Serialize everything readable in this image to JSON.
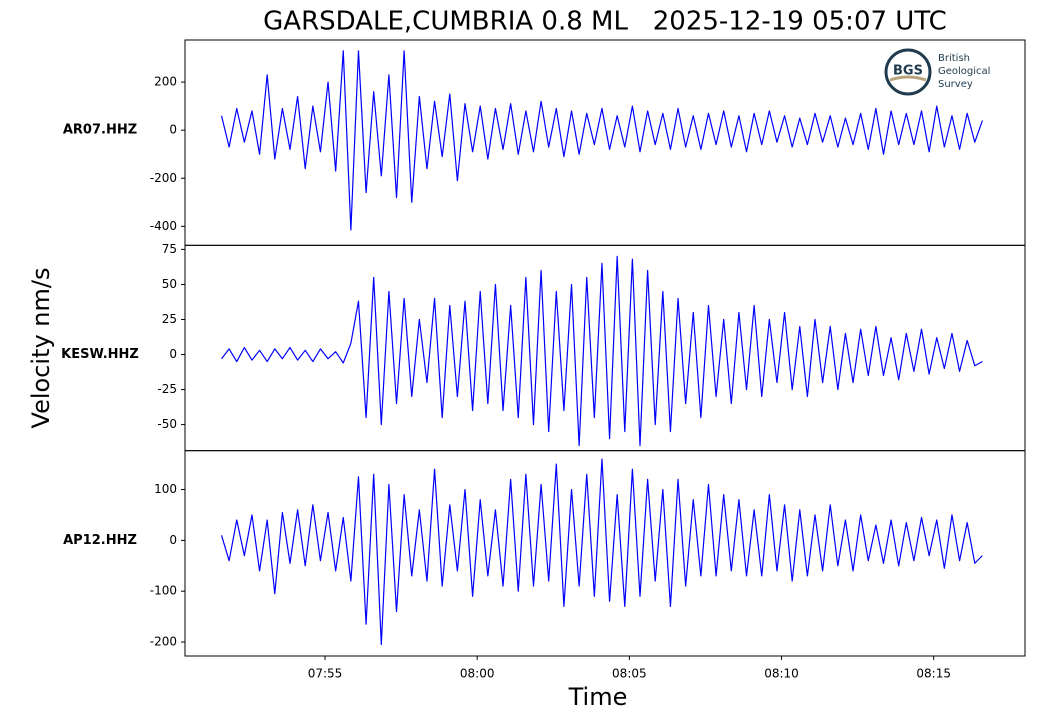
{
  "chart_data": {
    "type": "line",
    "title": "GARSDALE,CUMBRIA 0.8 ML   2025-12-19 05:07 UTC",
    "x_label": "Time",
    "y_label": "Velocity nm/s",
    "logo": {
      "mark": "BGS",
      "lines": [
        "British",
        "Geological",
        "Survey"
      ]
    },
    "xlim": [
      470.4,
      498.0
    ],
    "xticks": [
      {
        "value": 475,
        "label": "07:55"
      },
      {
        "value": 480,
        "label": "08:00"
      },
      {
        "value": 485,
        "label": "08:05"
      },
      {
        "value": 490,
        "label": "08:10"
      },
      {
        "value": 495,
        "label": "08:15"
      }
    ],
    "x": [
      471.6,
      471.85,
      472.1,
      472.35,
      472.6,
      472.85,
      473.1,
      473.35,
      473.6,
      473.85,
      474.1,
      474.35,
      474.6,
      474.85,
      475.1,
      475.35,
      475.6,
      475.85,
      476.1,
      476.35,
      476.6,
      476.85,
      477.1,
      477.35,
      477.6,
      477.85,
      478.1,
      478.35,
      478.6,
      478.85,
      479.1,
      479.35,
      479.6,
      479.85,
      480.1,
      480.35,
      480.6,
      480.85,
      481.1,
      481.35,
      481.6,
      481.85,
      482.1,
      482.35,
      482.6,
      482.85,
      483.1,
      483.35,
      483.6,
      483.85,
      484.1,
      484.35,
      484.6,
      484.85,
      485.1,
      485.35,
      485.6,
      485.85,
      486.1,
      486.35,
      486.6,
      486.85,
      487.1,
      487.35,
      487.6,
      487.85,
      488.1,
      488.35,
      488.6,
      488.85,
      489.1,
      489.35,
      489.6,
      489.85,
      490.1,
      490.35,
      490.6,
      490.85,
      491.1,
      491.35,
      491.6,
      491.85,
      492.1,
      492.35,
      492.6,
      492.85,
      493.1,
      493.35,
      493.6,
      493.85,
      494.1,
      494.35,
      494.6,
      494.85,
      495.1,
      495.35,
      495.6,
      495.85,
      496.1,
      496.35,
      496.6
    ],
    "series": [
      {
        "name": "AR07.HHZ",
        "color": "#0000ff",
        "ylim": [
          -479,
          375
        ],
        "yticks": [
          -400,
          -200,
          0,
          200
        ],
        "values": [
          60,
          -70,
          90,
          -50,
          80,
          -100,
          230,
          -120,
          90,
          -80,
          140,
          -160,
          100,
          -90,
          200,
          -170,
          330,
          -415,
          330,
          -260,
          160,
          -190,
          230,
          -280,
          330,
          -300,
          140,
          -160,
          120,
          -110,
          150,
          -210,
          110,
          -90,
          100,
          -120,
          90,
          -80,
          110,
          -100,
          80,
          -90,
          120,
          -70,
          90,
          -110,
          80,
          -100,
          70,
          -60,
          90,
          -80,
          60,
          -70,
          100,
          -90,
          80,
          -60,
          70,
          -80,
          90,
          -70,
          60,
          -80,
          70,
          -60,
          80,
          -70,
          60,
          -90,
          70,
          -60,
          80,
          -50,
          60,
          -70,
          50,
          -60,
          70,
          -50,
          60,
          -70,
          50,
          -60,
          70,
          -80,
          90,
          -100,
          80,
          -60,
          70,
          -60,
          80,
          -90,
          100,
          -70,
          60,
          -80,
          70,
          -50,
          40
        ]
      },
      {
        "name": "KESW.HHZ",
        "color": "#0000ff",
        "ylim": [
          -68.6,
          77.9
        ],
        "yticks": [
          -50,
          -25,
          0,
          25,
          50,
          75
        ],
        "values": [
          -3,
          4,
          -5,
          5,
          -4,
          3,
          -5,
          4,
          -3,
          5,
          -4,
          3,
          -5,
          4,
          -3,
          2,
          -6,
          8,
          38,
          -45,
          55,
          -50,
          45,
          -35,
          40,
          -30,
          25,
          -20,
          40,
          -45,
          35,
          -30,
          38,
          -40,
          45,
          -35,
          50,
          -40,
          35,
          -45,
          55,
          -50,
          60,
          -55,
          45,
          -40,
          50,
          -65,
          55,
          -45,
          65,
          -60,
          70,
          -55,
          68,
          -65,
          60,
          -50,
          45,
          -55,
          40,
          -35,
          30,
          -45,
          35,
          -30,
          25,
          -35,
          30,
          -25,
          35,
          -30,
          25,
          -20,
          30,
          -25,
          20,
          -30,
          25,
          -20,
          20,
          -25,
          15,
          -20,
          18,
          -15,
          20,
          -15,
          12,
          -18,
          15,
          -12,
          18,
          -14,
          12,
          -10,
          15,
          -12,
          10,
          -8,
          -5
        ]
      },
      {
        "name": "AP12.HHZ",
        "color": "#0000ff",
        "ylim": [
          -227.5,
          176.5
        ],
        "yticks": [
          -200,
          -100,
          0,
          100
        ],
        "values": [
          10,
          -40,
          40,
          -30,
          50,
          -60,
          40,
          -105,
          55,
          -45,
          60,
          -50,
          70,
          -40,
          55,
          -60,
          45,
          -80,
          125,
          -165,
          130,
          -205,
          110,
          -140,
          90,
          -70,
          60,
          -80,
          140,
          -90,
          70,
          -60,
          100,
          -110,
          80,
          -70,
          60,
          -90,
          120,
          -100,
          130,
          -90,
          110,
          -80,
          150,
          -130,
          100,
          -90,
          130,
          -110,
          160,
          -120,
          90,
          -130,
          140,
          -110,
          120,
          -80,
          100,
          -130,
          120,
          -90,
          80,
          -70,
          110,
          -70,
          90,
          -60,
          80,
          -70,
          60,
          -70,
          90,
          -60,
          70,
          -80,
          60,
          -70,
          50,
          -60,
          70,
          -50,
          40,
          -60,
          50,
          -40,
          30,
          -45,
          40,
          -50,
          35,
          -40,
          45,
          -30,
          40,
          -55,
          50,
          -40,
          35,
          -45,
          -30
        ]
      }
    ]
  }
}
